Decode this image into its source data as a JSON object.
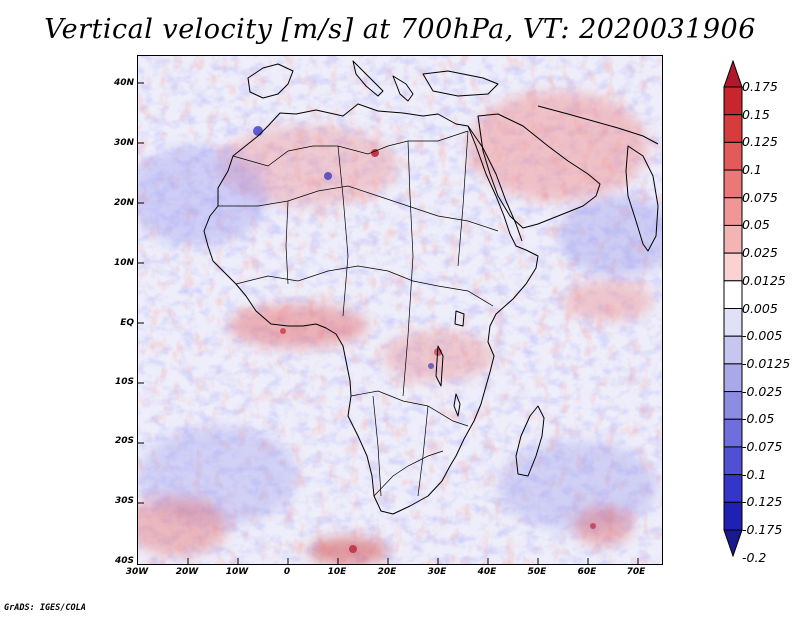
{
  "title": "Vertical velocity [m/s] at 700hPa, VT: 2020031906",
  "credit": "GrADS: IGES/COLA",
  "axes": {
    "lat_labels": [
      "40N",
      "30N",
      "20N",
      "10N",
      "EQ",
      "10S",
      "20S",
      "30S",
      "40S"
    ],
    "lon_labels": [
      "30W",
      "20W",
      "10W",
      "0",
      "10E",
      "20E",
      "30E",
      "40E",
      "50E",
      "60E",
      "70E"
    ]
  },
  "map": {
    "region": "Africa, Mediterranean, Arabian Peninsula and western Indian Ocean",
    "lon_range": [
      -30,
      75
    ],
    "lat_range": [
      -40,
      45
    ],
    "field": "vertical velocity at 700hPa (m/s)"
  },
  "colorbar": {
    "labels": [
      "0.175",
      "0.15",
      "0.125",
      "0.1",
      "0.075",
      "0.05",
      "0.025",
      "0.0125",
      "0.005",
      "-0.005",
      "-0.0125",
      "-0.025",
      "-0.05",
      "-0.075",
      "-0.1",
      "-0.125",
      "-0.175",
      "-0.2"
    ],
    "colors": [
      "#b2182b",
      "#c7262e",
      "#d73c3c",
      "#e35a5a",
      "#ea7878",
      "#f09696",
      "#f5b4b4",
      "#fad2d2",
      "#ffffff",
      "#e0e0f7",
      "#c6c6f0",
      "#a9a9ea",
      "#8c8ce3",
      "#6e6edc",
      "#5050d4",
      "#3535c8",
      "#2020b2",
      "#1a1a90"
    ]
  }
}
